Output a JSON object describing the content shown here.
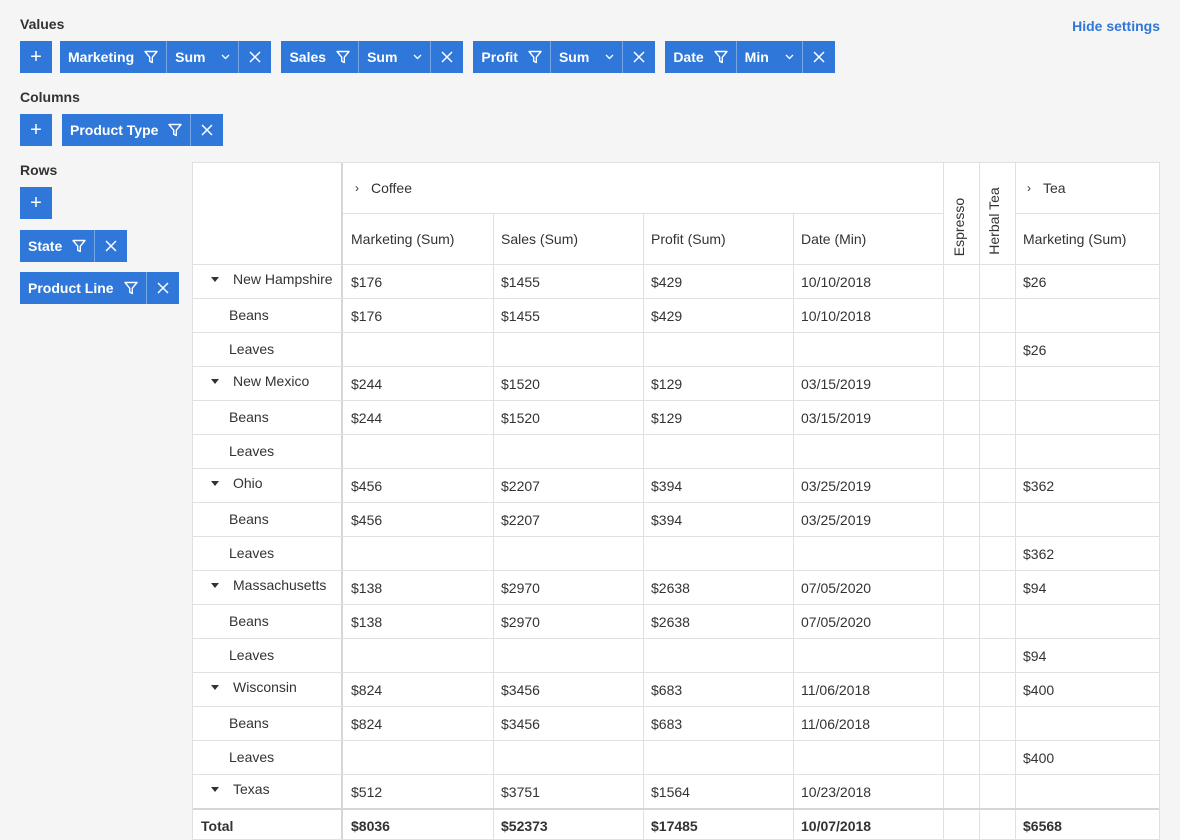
{
  "header": {
    "hide_settings_label": "Hide settings"
  },
  "values": {
    "label": "Values",
    "add_label": "+",
    "pills": [
      {
        "field": "Marketing",
        "agg": "Sum"
      },
      {
        "field": "Sales",
        "agg": "Sum"
      },
      {
        "field": "Profit",
        "agg": "Sum"
      },
      {
        "field": "Date",
        "agg": "Min"
      }
    ]
  },
  "columns": {
    "label": "Columns",
    "add_label": "+",
    "pills": [
      {
        "field": "Product Type"
      }
    ]
  },
  "rows": {
    "label": "Rows",
    "add_label": "+",
    "pills": [
      {
        "field": "State"
      },
      {
        "field": "Product Line"
      }
    ]
  },
  "grid": {
    "col_groups": {
      "coffee": "Coffee",
      "espresso": "Espresso",
      "herbal_tea": "Herbal Tea",
      "tea": "Tea"
    },
    "col_headers": [
      "Marketing (Sum)",
      "Sales (Sum)",
      "Profit (Sum)",
      "Date (Min)",
      "Marketing (Sum)"
    ],
    "rows": [
      {
        "label": "New Hampshire",
        "type": "group",
        "cells": [
          "$176",
          "$1455",
          "$429",
          "10/10/2018",
          "$26"
        ]
      },
      {
        "label": "Beans",
        "type": "child",
        "cells": [
          "$176",
          "$1455",
          "$429",
          "10/10/2018",
          ""
        ]
      },
      {
        "label": "Leaves",
        "type": "child",
        "cells": [
          "",
          "",
          "",
          "",
          "$26"
        ]
      },
      {
        "label": "New Mexico",
        "type": "group",
        "cells": [
          "$244",
          "$1520",
          "$129",
          "03/15/2019",
          ""
        ]
      },
      {
        "label": "Beans",
        "type": "child",
        "cells": [
          "$244",
          "$1520",
          "$129",
          "03/15/2019",
          ""
        ]
      },
      {
        "label": "Leaves",
        "type": "child",
        "cells": [
          "",
          "",
          "",
          "",
          ""
        ]
      },
      {
        "label": "Ohio",
        "type": "group",
        "cells": [
          "$456",
          "$2207",
          "$394",
          "03/25/2019",
          "$362"
        ]
      },
      {
        "label": "Beans",
        "type": "child",
        "cells": [
          "$456",
          "$2207",
          "$394",
          "03/25/2019",
          ""
        ]
      },
      {
        "label": "Leaves",
        "type": "child",
        "cells": [
          "",
          "",
          "",
          "",
          "$362"
        ]
      },
      {
        "label": "Massachusetts",
        "type": "group",
        "cells": [
          "$138",
          "$2970",
          "$2638",
          "07/05/2020",
          "$94"
        ]
      },
      {
        "label": "Beans",
        "type": "child",
        "cells": [
          "$138",
          "$2970",
          "$2638",
          "07/05/2020",
          ""
        ]
      },
      {
        "label": "Leaves",
        "type": "child",
        "cells": [
          "",
          "",
          "",
          "",
          "$94"
        ]
      },
      {
        "label": "Wisconsin",
        "type": "group",
        "cells": [
          "$824",
          "$3456",
          "$683",
          "11/06/2018",
          "$400"
        ]
      },
      {
        "label": "Beans",
        "type": "child",
        "cells": [
          "$824",
          "$3456",
          "$683",
          "11/06/2018",
          ""
        ]
      },
      {
        "label": "Leaves",
        "type": "child",
        "cells": [
          "",
          "",
          "",
          "",
          "$400"
        ]
      },
      {
        "label": "Texas",
        "type": "group",
        "cells": [
          "$512",
          "$3751",
          "$1564",
          "10/23/2018",
          ""
        ]
      }
    ],
    "total": {
      "label": "Total",
      "cells": [
        "$8036",
        "$52373",
        "$17485",
        "10/07/2018",
        "$6568"
      ]
    }
  }
}
